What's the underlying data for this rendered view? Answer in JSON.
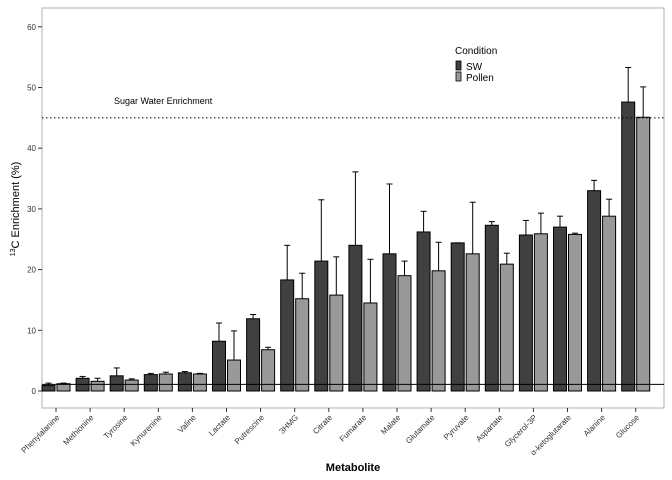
{
  "chart_data": {
    "type": "bar",
    "xlabel": "Metabolite",
    "ylabel_sup": "13",
    "ylabel_rest": "C Enrichment (%)",
    "ylim": [
      -3,
      63
    ],
    "yticks": [
      0,
      10,
      20,
      30,
      40,
      50,
      60
    ],
    "grid": false,
    "legend": {
      "title": "Condition",
      "position": "top-center"
    },
    "categories": [
      "Phenylalanine",
      "Methionine",
      "Tyrosine",
      "Kynurenine",
      "Valine",
      "Lactate",
      "Putrescine",
      "3HMG",
      "Citrate",
      "Fumarate",
      "Malate",
      "Glutamate",
      "Pyruvate",
      "Aspartate",
      "Glycerol-3P",
      "α-ketoglutarate",
      "Alanine",
      "Glucose"
    ],
    "series": [
      {
        "name": "SW",
        "color": "#404040",
        "values": [
          0.9,
          2.1,
          2.5,
          2.7,
          3.0,
          8.2,
          11.9,
          18.3,
          21.4,
          24.0,
          22.6,
          26.2,
          24.4,
          27.3,
          25.7,
          27.0,
          33.0,
          47.6
        ],
        "errors": [
          0.4,
          0.3,
          1.3,
          0.2,
          0.2,
          3.0,
          0.7,
          5.7,
          10.1,
          12.1,
          11.5,
          3.4,
          0.0,
          0.6,
          2.4,
          1.8,
          1.7,
          5.7
        ]
      },
      {
        "name": "Pollen",
        "color": "#999999",
        "values": [
          1.2,
          1.6,
          1.8,
          2.8,
          2.8,
          5.1,
          6.8,
          15.2,
          15.8,
          14.5,
          19.0,
          19.8,
          22.6,
          20.9,
          25.9,
          25.8,
          28.8,
          45.1
        ],
        "errors": [
          0.1,
          0.5,
          0.2,
          0.3,
          0.1,
          4.8,
          0.4,
          4.2,
          6.3,
          7.2,
          2.4,
          4.7,
          8.5,
          1.8,
          3.4,
          0.2,
          2.8,
          5.0
        ]
      }
    ],
    "reference_lines": [
      {
        "label": "Sugar Water Enrichment",
        "y": 45,
        "style": "dotted"
      },
      {
        "label": "",
        "y": 1.1,
        "style": "solid"
      }
    ]
  }
}
